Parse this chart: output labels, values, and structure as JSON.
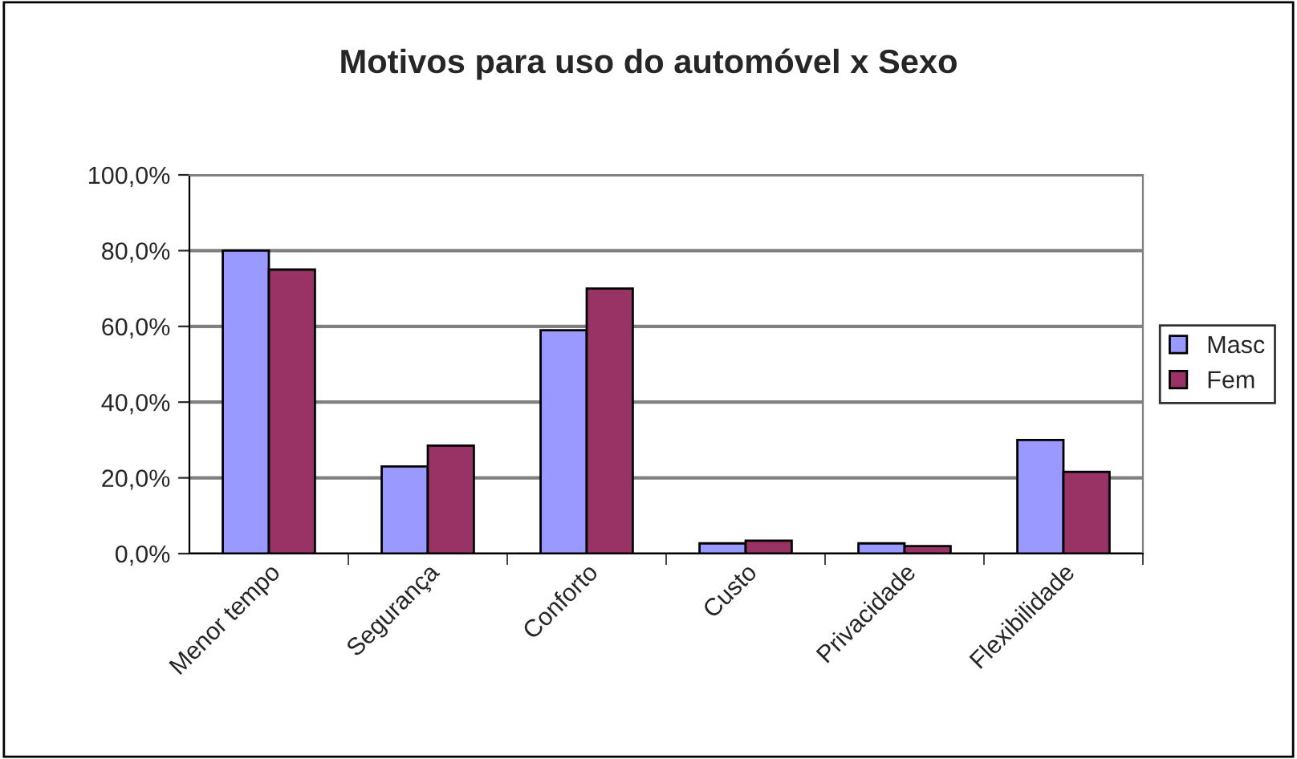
{
  "chart_data": {
    "type": "bar",
    "title": "Motivos para uso do automóvel x Sexo",
    "categories": [
      "Menor tempo",
      "Segurança",
      "Conforto",
      "Custo",
      "Privacidade",
      "Flexibilidade"
    ],
    "series": [
      {
        "name": "Masc",
        "color": "#9999ff",
        "values": [
          80,
          23,
          59,
          2.7,
          2.7,
          30
        ]
      },
      {
        "name": "Fem",
        "color": "#993366",
        "values": [
          75,
          28.5,
          70,
          3.4,
          2.0,
          21.6
        ]
      }
    ],
    "ylim": [
      0,
      100
    ],
    "yticks": [
      {
        "value": 0,
        "label": "0,0%"
      },
      {
        "value": 20,
        "label": "20,0%"
      },
      {
        "value": 40,
        "label": "40,0%"
      },
      {
        "value": 60,
        "label": "60,0%"
      },
      {
        "value": 80,
        "label": "80,0%"
      },
      {
        "value": 100,
        "label": "100,0%"
      }
    ],
    "grid": "y",
    "legend": "right"
  }
}
